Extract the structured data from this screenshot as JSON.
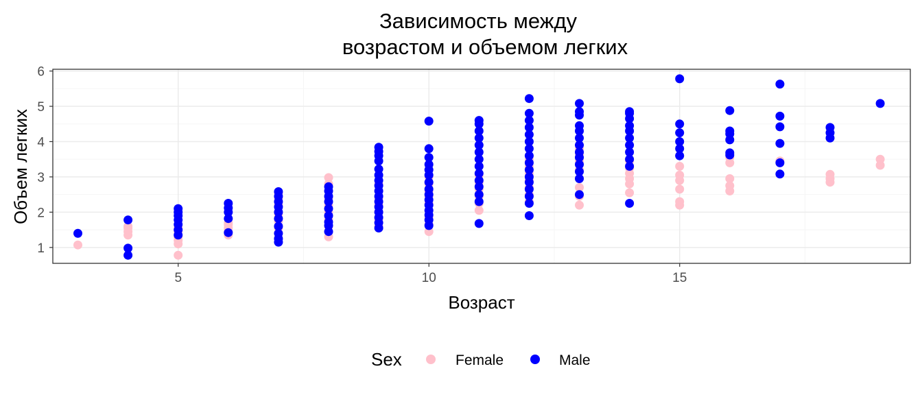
{
  "chart_data": {
    "type": "scatter",
    "title_lines": [
      "Зависимость между",
      "возрастом и объемом легких"
    ],
    "xlabel": "Возраст",
    "ylabel": "Объем легких",
    "xlim": [
      2.5,
      19.6
    ],
    "ylim": [
      0.55,
      6.05
    ],
    "x_ticks": [
      5,
      10,
      15
    ],
    "y_ticks": [
      1,
      2,
      3,
      4,
      5,
      6
    ],
    "grid": true,
    "legend": {
      "title": "Sex",
      "position": "bottom"
    },
    "series": [
      {
        "name": "Female",
        "color": "#FFC0CB",
        "points": [
          [
            3,
            1.07
          ],
          [
            4,
            1.35
          ],
          [
            4,
            1.45
          ],
          [
            4,
            1.55
          ],
          [
            4,
            1.6
          ],
          [
            5,
            0.78
          ],
          [
            5,
            1.1
          ],
          [
            5,
            1.2
          ],
          [
            5,
            1.3
          ],
          [
            5,
            1.45
          ],
          [
            5,
            1.55
          ],
          [
            6,
            1.35
          ],
          [
            6,
            1.45
          ],
          [
            6,
            1.55
          ],
          [
            6,
            1.65
          ],
          [
            6,
            1.7
          ],
          [
            7,
            1.25
          ],
          [
            7,
            1.4
          ],
          [
            7,
            1.55
          ],
          [
            7,
            1.75
          ],
          [
            7,
            1.95
          ],
          [
            7,
            2.2
          ],
          [
            7,
            2.4
          ],
          [
            7,
            2.55
          ],
          [
            8,
            1.3
          ],
          [
            8,
            1.45
          ],
          [
            8,
            1.6
          ],
          [
            8,
            1.8
          ],
          [
            8,
            2.0
          ],
          [
            8,
            2.2
          ],
          [
            8,
            2.4
          ],
          [
            8,
            2.6
          ],
          [
            8,
            2.8
          ],
          [
            8,
            2.98
          ],
          [
            9,
            1.6
          ],
          [
            9,
            1.8
          ],
          [
            9,
            2.0
          ],
          [
            9,
            2.2
          ],
          [
            9,
            2.4
          ],
          [
            9,
            2.6
          ],
          [
            9,
            2.8
          ],
          [
            10,
            1.45
          ],
          [
            10,
            1.65
          ],
          [
            10,
            1.85
          ],
          [
            10,
            2.05
          ],
          [
            10,
            2.25
          ],
          [
            10,
            2.45
          ],
          [
            10,
            2.6
          ],
          [
            10,
            2.8
          ],
          [
            10,
            3.0
          ],
          [
            10,
            3.2
          ],
          [
            11,
            2.05
          ],
          [
            11,
            2.25
          ],
          [
            11,
            2.45
          ],
          [
            11,
            2.65
          ],
          [
            11,
            2.85
          ],
          [
            11,
            3.05
          ],
          [
            11,
            3.3
          ],
          [
            12,
            2.3
          ],
          [
            12,
            2.5
          ],
          [
            12,
            2.7
          ],
          [
            12,
            2.9
          ],
          [
            12,
            3.1
          ],
          [
            12,
            3.3
          ],
          [
            12,
            3.5
          ],
          [
            13,
            2.2
          ],
          [
            13,
            2.45
          ],
          [
            13,
            2.7
          ],
          [
            13,
            2.95
          ],
          [
            13,
            3.2
          ],
          [
            13,
            3.45
          ],
          [
            13,
            3.65
          ],
          [
            13,
            3.8
          ],
          [
            14,
            2.55
          ],
          [
            14,
            2.8
          ],
          [
            14,
            2.95
          ],
          [
            14,
            3.1
          ],
          [
            14,
            3.25
          ],
          [
            14,
            3.45
          ],
          [
            15,
            2.2
          ],
          [
            15,
            2.3
          ],
          [
            15,
            2.65
          ],
          [
            15,
            2.9
          ],
          [
            15,
            3.05
          ],
          [
            15,
            3.3
          ],
          [
            16,
            2.6
          ],
          [
            16,
            2.75
          ],
          [
            16,
            2.95
          ],
          [
            16,
            3.4
          ],
          [
            16,
            3.55
          ],
          [
            17,
            3.45
          ],
          [
            18,
            2.85
          ],
          [
            18,
            2.95
          ],
          [
            18,
            3.07
          ],
          [
            19,
            3.33
          ],
          [
            19,
            3.5
          ]
        ]
      },
      {
        "name": "Male",
        "color": "#0000FF",
        "points": [
          [
            3,
            1.4
          ],
          [
            4,
            0.78
          ],
          [
            4,
            0.98
          ],
          [
            4,
            1.78
          ],
          [
            5,
            1.35
          ],
          [
            5,
            1.5
          ],
          [
            5,
            1.65
          ],
          [
            5,
            1.78
          ],
          [
            5,
            1.9
          ],
          [
            5,
            2.0
          ],
          [
            5,
            2.1
          ],
          [
            6,
            1.42
          ],
          [
            6,
            1.82
          ],
          [
            6,
            2.0
          ],
          [
            6,
            2.12
          ],
          [
            6,
            2.25
          ],
          [
            7,
            1.15
          ],
          [
            7,
            1.25
          ],
          [
            7,
            1.4
          ],
          [
            7,
            1.6
          ],
          [
            7,
            1.82
          ],
          [
            7,
            2.0
          ],
          [
            7,
            2.15
          ],
          [
            7,
            2.3
          ],
          [
            7,
            2.45
          ],
          [
            7,
            2.58
          ],
          [
            8,
            1.45
          ],
          [
            8,
            1.62
          ],
          [
            8,
            1.72
          ],
          [
            8,
            1.9
          ],
          [
            8,
            2.1
          ],
          [
            8,
            2.3
          ],
          [
            8,
            2.45
          ],
          [
            8,
            2.6
          ],
          [
            8,
            2.72
          ],
          [
            9,
            1.55
          ],
          [
            9,
            1.7
          ],
          [
            9,
            1.85
          ],
          [
            9,
            2.0
          ],
          [
            9,
            2.15
          ],
          [
            9,
            2.3
          ],
          [
            9,
            2.45
          ],
          [
            9,
            2.6
          ],
          [
            9,
            2.75
          ],
          [
            9,
            2.9
          ],
          [
            9,
            3.05
          ],
          [
            9,
            3.22
          ],
          [
            9,
            3.45
          ],
          [
            9,
            3.6
          ],
          [
            9,
            3.72
          ],
          [
            9,
            3.84
          ],
          [
            10,
            1.62
          ],
          [
            10,
            1.78
          ],
          [
            10,
            1.92
          ],
          [
            10,
            2.05
          ],
          [
            10,
            2.2
          ],
          [
            10,
            2.35
          ],
          [
            10,
            2.5
          ],
          [
            10,
            2.65
          ],
          [
            10,
            2.85
          ],
          [
            10,
            3.05
          ],
          [
            10,
            3.2
          ],
          [
            10,
            3.35
          ],
          [
            10,
            3.55
          ],
          [
            10,
            3.8
          ],
          [
            10,
            4.58
          ],
          [
            11,
            1.68
          ],
          [
            11,
            2.3
          ],
          [
            11,
            2.5
          ],
          [
            11,
            2.72
          ],
          [
            11,
            2.9
          ],
          [
            11,
            3.1
          ],
          [
            11,
            3.3
          ],
          [
            11,
            3.5
          ],
          [
            11,
            3.7
          ],
          [
            11,
            3.9
          ],
          [
            11,
            4.1
          ],
          [
            11,
            4.3
          ],
          [
            11,
            4.5
          ],
          [
            11,
            4.6
          ],
          [
            12,
            1.9
          ],
          [
            12,
            2.25
          ],
          [
            12,
            2.45
          ],
          [
            12,
            2.65
          ],
          [
            12,
            2.85
          ],
          [
            12,
            3.0
          ],
          [
            12,
            3.2
          ],
          [
            12,
            3.4
          ],
          [
            12,
            3.6
          ],
          [
            12,
            3.8
          ],
          [
            12,
            4.0
          ],
          [
            12,
            4.2
          ],
          [
            12,
            4.4
          ],
          [
            12,
            4.6
          ],
          [
            12,
            4.8
          ],
          [
            12,
            5.22
          ],
          [
            13,
            2.5
          ],
          [
            13,
            2.95
          ],
          [
            13,
            3.15
          ],
          [
            13,
            3.35
          ],
          [
            13,
            3.55
          ],
          [
            13,
            3.7
          ],
          [
            13,
            3.9
          ],
          [
            13,
            4.1
          ],
          [
            13,
            4.3
          ],
          [
            13,
            4.45
          ],
          [
            13,
            4.75
          ],
          [
            13,
            4.85
          ],
          [
            13,
            5.08
          ],
          [
            14,
            2.25
          ],
          [
            14,
            3.3
          ],
          [
            14,
            3.5
          ],
          [
            14,
            3.7
          ],
          [
            14,
            3.9
          ],
          [
            14,
            4.1
          ],
          [
            14,
            4.3
          ],
          [
            14,
            4.45
          ],
          [
            14,
            4.65
          ],
          [
            14,
            4.8
          ],
          [
            14,
            4.85
          ],
          [
            15,
            3.6
          ],
          [
            15,
            3.8
          ],
          [
            15,
            4.0
          ],
          [
            15,
            4.25
          ],
          [
            15,
            4.5
          ],
          [
            15,
            5.78
          ],
          [
            16,
            3.62
          ],
          [
            16,
            3.68
          ],
          [
            16,
            4.05
          ],
          [
            16,
            4.22
          ],
          [
            16,
            4.3
          ],
          [
            16,
            4.88
          ],
          [
            17,
            3.08
          ],
          [
            17,
            3.4
          ],
          [
            17,
            3.95
          ],
          [
            17,
            4.42
          ],
          [
            17,
            4.72
          ],
          [
            17,
            5.63
          ],
          [
            18,
            4.1
          ],
          [
            18,
            4.25
          ],
          [
            18,
            4.4
          ],
          [
            19,
            5.08
          ]
        ]
      }
    ]
  },
  "colors": {
    "panel_border": "#333333",
    "grid_major": "#ebebeb",
    "grid_minor": "#f5f5f5"
  }
}
